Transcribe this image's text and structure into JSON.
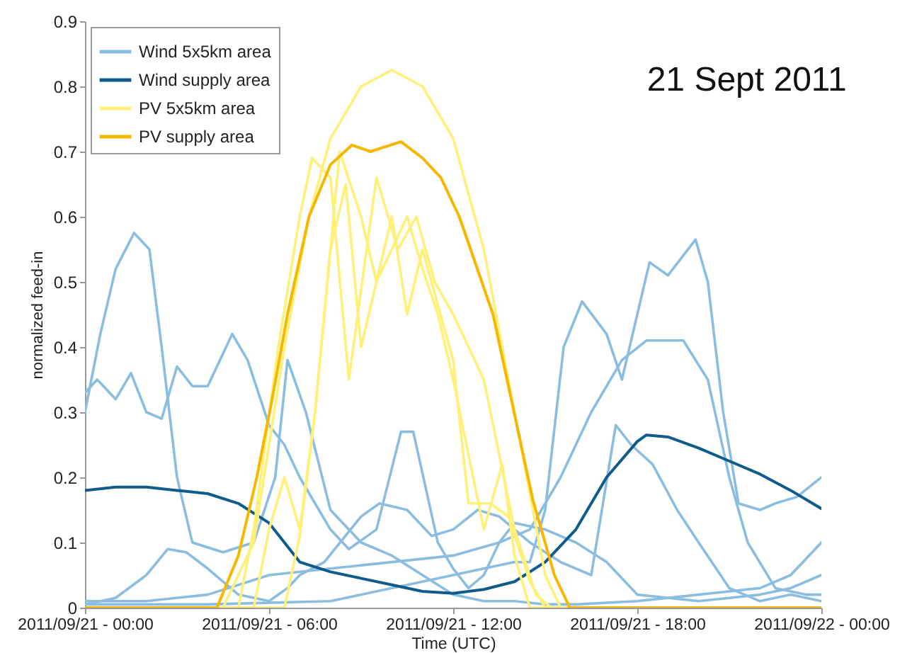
{
  "chart_data": {
    "type": "line",
    "title": "21 Sept 2011",
    "xlabel": "Time (UTC)",
    "ylabel": "normalized feed-in",
    "xlim": [
      "2011-09-21T00:00",
      "2011-09-22T00:00"
    ],
    "xticks": [
      {
        "value": "2011-09-21T00:00",
        "label": "2011/09/21 - 00:00"
      },
      {
        "value": "2011-09-21T06:00",
        "label": "2011/09/21 - 06:00"
      },
      {
        "value": "2011-09-21T12:00",
        "label": "2011/09/21 - 12:00"
      },
      {
        "value": "2011-09-21T18:00",
        "label": "2011/09/21 - 18:00"
      },
      {
        "value": "2011-09-22T00:00",
        "label": "2011/09/22 - 00:00"
      }
    ],
    "ylim": [
      0,
      0.9
    ],
    "yticks": [
      {
        "value": 0,
        "label": "0"
      },
      0.1,
      0.2,
      0.3,
      0.4,
      0.5,
      0.6,
      0.7,
      0.8,
      0.9
    ],
    "legend": "top left",
    "grid": false,
    "marker": "none",
    "line_style": "solid",
    "series": [
      {
        "name": "Wind 5x5km area",
        "color": "#8bbde0",
        "x": [
          "2011-09-21T00:00",
          "2011-09-21T00:30",
          "2011-09-21T01:00",
          "2011-09-21T01:36",
          "2011-09-21T02:06",
          "2011-09-21T02:30",
          "2011-09-21T03:00",
          "2011-09-21T03:30",
          "2011-09-21T04:30",
          "2011-09-21T05:30",
          "2011-09-21T06:12",
          "2011-09-21T06:36",
          "2011-09-21T07:12",
          "2011-09-21T08:00",
          "2011-09-21T09:00",
          "2011-09-21T10:00",
          "2011-09-21T11:00",
          "2011-09-21T12:00",
          "2011-09-21T13:00",
          "2011-09-21T14:00",
          "2011-09-21T15:00",
          "2011-09-21T16:00",
          "2011-09-21T18:00",
          "2011-09-21T20:00",
          "2011-09-21T22:00",
          "2011-09-21T23:00",
          "2011-09-22T00:00"
        ],
        "values": [
          0.3,
          0.42,
          0.52,
          0.575,
          0.55,
          0.4,
          0.2,
          0.1,
          0.085,
          0.1,
          0.2,
          0.38,
          0.3,
          0.15,
          0.1,
          0.08,
          0.05,
          0.02,
          0.01,
          0.01,
          0.005,
          0.005,
          0.01,
          0.02,
          0.03,
          0.05,
          0.1
        ]
      },
      {
        "color": "#8bbde0",
        "x": [
          "2011-09-21T00:00",
          "2011-09-21T00:24",
          "2011-09-21T01:00",
          "2011-09-21T01:30",
          "2011-09-21T02:00",
          "2011-09-21T02:30",
          "2011-09-21T03:00",
          "2011-09-21T03:30",
          "2011-09-21T04:00",
          "2011-09-21T04:48",
          "2011-09-21T05:18",
          "2011-09-21T06:00",
          "2011-09-21T06:30",
          "2011-09-21T07:00",
          "2011-09-21T08:00",
          "2011-09-21T08:36",
          "2011-09-21T09:30",
          "2011-09-21T10:18",
          "2011-09-21T10:42",
          "2011-09-21T11:30",
          "2011-09-21T12:00",
          "2011-09-21T12:30",
          "2011-09-21T13:00",
          "2011-09-21T13:30",
          "2011-09-21T14:00",
          "2011-09-21T15:00",
          "2011-09-21T16:00",
          "2011-09-21T17:00",
          "2011-09-21T18:00",
          "2011-09-21T20:00",
          "2011-09-21T22:00",
          "2011-09-21T23:00",
          "2011-09-22T00:00"
        ],
        "values": [
          0.33,
          0.35,
          0.32,
          0.36,
          0.3,
          0.29,
          0.37,
          0.34,
          0.34,
          0.42,
          0.38,
          0.28,
          0.25,
          0.2,
          0.12,
          0.09,
          0.12,
          0.27,
          0.27,
          0.1,
          0.06,
          0.03,
          0.05,
          0.1,
          0.13,
          0.12,
          0.1,
          0.07,
          0.02,
          0.01,
          0.02,
          0.03,
          0.05
        ]
      },
      {
        "color": "#8bbde0",
        "x": [
          "2011-09-21T00:00",
          "2011-09-21T04:00",
          "2011-09-21T08:00",
          "2011-09-21T12:00",
          "2011-09-21T13:00",
          "2011-09-21T14:00",
          "2011-09-21T14:30",
          "2011-09-21T15:00",
          "2011-09-21T15:36",
          "2011-09-21T16:12",
          "2011-09-21T17:00",
          "2011-09-21T17:30",
          "2011-09-21T18:00",
          "2011-09-21T18:24",
          "2011-09-21T19:00",
          "2011-09-21T19:54",
          "2011-09-21T20:18",
          "2011-09-21T20:48",
          "2011-09-21T21:18",
          "2011-09-21T22:00",
          "2011-09-21T22:30",
          "2011-09-21T23:12",
          "2011-09-22T00:00"
        ],
        "values": [
          0.005,
          0.005,
          0.01,
          0.05,
          0.06,
          0.07,
          0.07,
          0.15,
          0.4,
          0.47,
          0.42,
          0.35,
          0.45,
          0.53,
          0.51,
          0.565,
          0.5,
          0.3,
          0.16,
          0.15,
          0.16,
          0.17,
          0.2
        ]
      },
      {
        "color": "#8bbde0",
        "x": [
          "2011-09-21T00:00",
          "2011-09-21T02:00",
          "2011-09-21T04:00",
          "2011-09-21T06:00",
          "2011-09-21T08:00",
          "2011-09-21T10:00",
          "2011-09-21T12:00",
          "2011-09-21T13:30",
          "2011-09-21T14:30",
          "2011-09-21T15:30",
          "2011-09-21T16:30",
          "2011-09-21T17:30",
          "2011-09-21T18:18",
          "2011-09-21T19:30",
          "2011-09-21T20:18",
          "2011-09-21T21:00",
          "2011-09-21T21:36",
          "2011-09-21T22:30",
          "2011-09-21T23:30",
          "2011-09-22T00:00"
        ],
        "values": [
          0.01,
          0.01,
          0.02,
          0.05,
          0.06,
          0.07,
          0.08,
          0.1,
          0.12,
          0.2,
          0.3,
          0.38,
          0.41,
          0.41,
          0.35,
          0.2,
          0.1,
          0.03,
          0.02,
          0.02
        ]
      },
      {
        "color": "#8bbde0",
        "x": [
          "2011-09-21T00:00",
          "2011-09-21T01:00",
          "2011-09-21T02:00",
          "2011-09-21T02:42",
          "2011-09-21T03:18",
          "2011-09-21T04:00",
          "2011-09-21T05:00",
          "2011-09-21T06:00",
          "2011-09-21T06:36",
          "2011-09-21T07:00",
          "2011-09-21T07:48",
          "2011-09-21T09:00",
          "2011-09-21T09:36",
          "2011-09-21T10:30",
          "2011-09-21T11:18",
          "2011-09-21T12:00",
          "2011-09-21T12:48",
          "2011-09-21T13:30",
          "2011-09-21T14:30",
          "2011-09-21T15:30",
          "2011-09-21T16:30",
          "2011-09-21T17:18",
          "2011-09-21T17:48",
          "2011-09-21T18:30",
          "2011-09-21T19:18",
          "2011-09-21T20:00",
          "2011-09-21T21:00",
          "2011-09-21T22:00",
          "2011-09-21T23:00",
          "2011-09-22T00:00"
        ],
        "values": [
          0.005,
          0.015,
          0.05,
          0.09,
          0.085,
          0.06,
          0.02,
          0.01,
          0.03,
          0.05,
          0.07,
          0.14,
          0.16,
          0.15,
          0.11,
          0.12,
          0.15,
          0.14,
          0.1,
          0.07,
          0.05,
          0.28,
          0.25,
          0.22,
          0.15,
          0.1,
          0.03,
          0.01,
          0.02,
          0.01
        ]
      },
      {
        "name": "Wind supply area",
        "color": "#0f5b8c",
        "x": [
          "2011-09-21T00:00",
          "2011-09-21T01:00",
          "2011-09-21T02:00",
          "2011-09-21T03:00",
          "2011-09-21T04:00",
          "2011-09-21T05:00",
          "2011-09-21T06:00",
          "2011-09-21T06:30",
          "2011-09-21T07:00",
          "2011-09-21T08:00",
          "2011-09-21T09:00",
          "2011-09-21T10:00",
          "2011-09-21T11:00",
          "2011-09-21T12:00",
          "2011-09-21T13:00",
          "2011-09-21T14:00",
          "2011-09-21T15:00",
          "2011-09-21T16:00",
          "2011-09-21T17:00",
          "2011-09-21T18:00",
          "2011-09-21T18:18",
          "2011-09-21T19:00",
          "2011-09-21T20:00",
          "2011-09-21T21:00",
          "2011-09-21T22:00",
          "2011-09-21T23:00",
          "2011-09-22T00:00"
        ],
        "values": [
          0.18,
          0.185,
          0.185,
          0.18,
          0.175,
          0.16,
          0.13,
          0.1,
          0.07,
          0.055,
          0.045,
          0.035,
          0.025,
          0.022,
          0.028,
          0.04,
          0.07,
          0.12,
          0.2,
          0.255,
          0.265,
          0.262,
          0.245,
          0.225,
          0.205,
          0.18,
          0.152
        ]
      },
      {
        "name": "PV 5x5km area",
        "color": "#fff07a",
        "x": [
          "2011-09-21T00:00",
          "2011-09-21T04:30",
          "2011-09-21T05:30",
          "2011-09-21T06:30",
          "2011-09-21T07:18",
          "2011-09-21T08:00",
          "2011-09-21T09:00",
          "2011-09-21T10:00",
          "2011-09-21T11:00",
          "2011-09-21T12:00",
          "2011-09-21T13:00",
          "2011-09-21T14:00",
          "2011-09-21T15:00",
          "2011-09-21T15:30",
          "2011-09-22T00:00"
        ],
        "values": [
          0,
          0,
          0.1,
          0.4,
          0.6,
          0.72,
          0.8,
          0.825,
          0.8,
          0.72,
          0.55,
          0.3,
          0.05,
          0,
          0
        ]
      },
      {
        "color": "#fff07a",
        "x": [
          "2011-09-21T00:00",
          "2011-09-21T05:00",
          "2011-09-21T05:30",
          "2011-09-21T06:18",
          "2011-09-21T07:00",
          "2011-09-21T07:24",
          "2011-09-21T08:00",
          "2011-09-21T08:36",
          "2011-09-21T09:30",
          "2011-09-21T10:12",
          "2011-09-21T10:48",
          "2011-09-21T11:24",
          "2011-09-21T12:00",
          "2011-09-21T13:00",
          "2011-09-21T14:00",
          "2011-09-21T14:42",
          "2011-09-21T15:12",
          "2011-09-22T00:00"
        ],
        "values": [
          0,
          0,
          0.12,
          0.4,
          0.6,
          0.69,
          0.66,
          0.35,
          0.66,
          0.55,
          0.6,
          0.5,
          0.45,
          0.35,
          0.12,
          0.02,
          0,
          0
        ]
      },
      {
        "color": "#fff07a",
        "x": [
          "2011-09-21T00:00",
          "2011-09-21T06:30",
          "2011-09-21T07:00",
          "2011-09-21T07:30",
          "2011-09-21T08:00",
          "2011-09-21T08:30",
          "2011-09-21T09:00",
          "2011-09-21T09:30",
          "2011-09-21T10:00",
          "2011-09-21T10:30",
          "2011-09-21T11:00",
          "2011-09-21T12:00",
          "2011-09-21T12:30",
          "2011-09-21T13:12",
          "2011-09-21T13:48",
          "2011-09-21T14:30",
          "2011-09-21T15:00",
          "2011-09-22T00:00"
        ],
        "values": [
          0,
          0,
          0.11,
          0.3,
          0.55,
          0.65,
          0.4,
          0.5,
          0.6,
          0.45,
          0.55,
          0.38,
          0.16,
          0.16,
          0.14,
          0.04,
          0,
          0
        ]
      },
      {
        "color": "#fff07a",
        "x": [
          "2011-09-21T00:00",
          "2011-09-21T05:30",
          "2011-09-21T06:00",
          "2011-09-21T06:30",
          "2011-09-21T07:00",
          "2011-09-21T07:30",
          "2011-09-21T08:18",
          "2011-09-21T09:00",
          "2011-09-21T09:30",
          "2011-09-21T10:00",
          "2011-09-21T10:30",
          "2011-09-21T11:00",
          "2011-09-21T11:30",
          "2011-09-21T12:00",
          "2011-09-21T13:00",
          "2011-09-21T13:36",
          "2011-09-21T14:00",
          "2011-09-21T14:30",
          "2011-09-22T00:00"
        ],
        "values": [
          0,
          0,
          0.12,
          0.2,
          0.12,
          0.3,
          0.7,
          0.6,
          0.5,
          0.55,
          0.6,
          0.52,
          0.45,
          0.35,
          0.12,
          0.22,
          0.08,
          0,
          0
        ]
      },
      {
        "name": "PV supply area",
        "color": "#f5b800",
        "x": [
          "2011-09-21T00:00",
          "2011-09-21T04:18",
          "2011-09-21T05:00",
          "2011-09-21T05:36",
          "2011-09-21T06:06",
          "2011-09-21T06:36",
          "2011-09-21T07:18",
          "2011-09-21T08:00",
          "2011-09-21T08:42",
          "2011-09-21T09:18",
          "2011-09-21T10:18",
          "2011-09-21T11:00",
          "2011-09-21T11:36",
          "2011-09-21T12:12",
          "2011-09-21T13:18",
          "2011-09-21T14:36",
          "2011-09-21T15:18",
          "2011-09-21T15:48",
          "2011-09-22T00:00"
        ],
        "values": [
          0,
          0,
          0.08,
          0.2,
          0.32,
          0.45,
          0.6,
          0.68,
          0.71,
          0.7,
          0.715,
          0.69,
          0.66,
          0.6,
          0.45,
          0.165,
          0.05,
          0,
          0
        ]
      }
    ]
  }
}
